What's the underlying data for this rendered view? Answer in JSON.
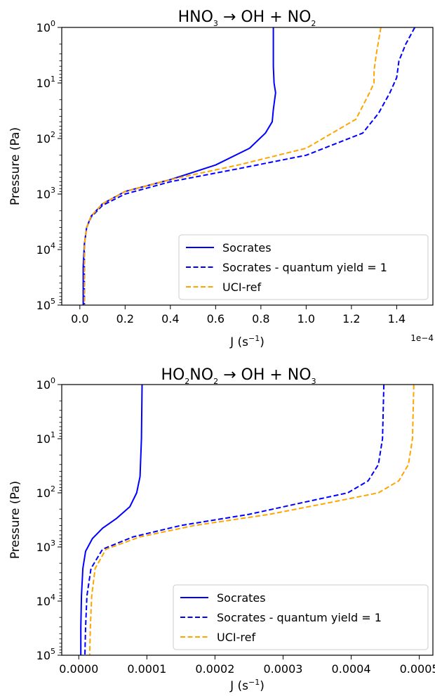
{
  "chart_data": [
    {
      "type": "line",
      "title": {
        "pre": "HNO",
        "s1": "3",
        "mid": " → OH + NO",
        "s2": "2",
        "post": ""
      },
      "xlabel": {
        "base": "J (s",
        "sup": "−1",
        "close": ")"
      },
      "ylabel": "Pressure (Pa)",
      "x_scale_note": "1e−4",
      "y_scale": "log",
      "y_inverted": true,
      "xlim": [
        -0.08,
        1.56
      ],
      "ylim": [
        1,
        100000
      ],
      "x_ticks": [
        0.0,
        0.2,
        0.4,
        0.6,
        0.8,
        1.0,
        1.2,
        1.4
      ],
      "x_tick_labels": [
        "0.0",
        "0.2",
        "0.4",
        "0.6",
        "0.8",
        "1.0",
        "1.2",
        "1.4"
      ],
      "y_ticks": [
        {
          "base": "10",
          "exp": "0",
          "value": 1
        },
        {
          "base": "10",
          "exp": "1",
          "value": 10
        },
        {
          "base": "10",
          "exp": "2",
          "value": 100
        },
        {
          "base": "10",
          "exp": "3",
          "value": 1000
        },
        {
          "base": "10",
          "exp": "4",
          "value": 10000
        },
        {
          "base": "10",
          "exp": "5",
          "value": 100000
        }
      ],
      "legend": {
        "location": "lower right"
      },
      "series": [
        {
          "name": "Socrates",
          "color": "#0000ff",
          "style": "solid",
          "x": [
            0.855,
            0.855,
            0.858,
            0.865,
            0.855,
            0.85,
            0.82,
            0.75,
            0.6,
            0.4,
            0.2,
            0.1,
            0.05,
            0.03,
            0.02,
            0.015,
            0.015,
            0.015
          ],
          "y": [
            1,
            5,
            10,
            15,
            30,
            50,
            80,
            150,
            300,
            550,
            900,
            1500,
            2500,
            4000,
            8000,
            20000,
            50000,
            100000
          ]
        },
        {
          "name": "Socrates - quantum yield = 1",
          "color": "#0000ff",
          "style": "dashed",
          "x": [
            1.48,
            1.44,
            1.41,
            1.4,
            1.37,
            1.32,
            1.25,
            1.0,
            0.7,
            0.4,
            0.2,
            0.1,
            0.05,
            0.03,
            0.02,
            0.02,
            0.02
          ],
          "y": [
            1,
            2,
            4,
            8,
            15,
            35,
            80,
            200,
            350,
            600,
            1000,
            1600,
            2600,
            4000,
            8000,
            30000,
            100000
          ]
        },
        {
          "name": "UCI-ref",
          "color": "#ffa500",
          "style": "dashed",
          "x": [
            1.33,
            1.31,
            1.3,
            1.3,
            1.28,
            1.22,
            1.0,
            0.7,
            0.4,
            0.2,
            0.1,
            0.05,
            0.03,
            0.02,
            0.02,
            0.02
          ],
          "y": [
            1,
            3,
            6,
            10,
            15,
            45,
            150,
            300,
            550,
            900,
            1500,
            2500,
            4000,
            8000,
            30000,
            100000
          ]
        }
      ]
    },
    {
      "type": "line",
      "title": {
        "pre": "HO",
        "s1": "2",
        "mid": "NO",
        "s2": "2",
        "post": " → OH + NO",
        "s3": "3"
      },
      "xlabel": {
        "base": "J (s",
        "sup": "−1",
        "close": ")"
      },
      "ylabel": "Pressure (Pa)",
      "x_scale_note": "",
      "y_scale": "log",
      "y_inverted": true,
      "xlim": [
        -2.5e-05,
        0.00052
      ],
      "ylim": [
        1,
        100000
      ],
      "x_ticks": [
        0.0,
        0.0001,
        0.0002,
        0.0003,
        0.0004,
        0.0005
      ],
      "x_tick_labels": [
        "0.0000",
        "0.0001",
        "0.0002",
        "0.0003",
        "0.0004",
        "0.0005"
      ],
      "y_ticks": [
        {
          "base": "10",
          "exp": "0",
          "value": 1
        },
        {
          "base": "10",
          "exp": "1",
          "value": 10
        },
        {
          "base": "10",
          "exp": "2",
          "value": 100
        },
        {
          "base": "10",
          "exp": "3",
          "value": 1000
        },
        {
          "base": "10",
          "exp": "4",
          "value": 10000
        },
        {
          "base": "10",
          "exp": "5",
          "value": 100000
        }
      ],
      "legend": {
        "location": "lower right"
      },
      "series": [
        {
          "name": "Socrates",
          "color": "#0000ff",
          "style": "solid",
          "x": [
            9.3e-05,
            9.2e-05,
            9e-05,
            8.5e-05,
            7.5e-05,
            5.5e-05,
            3.5e-05,
            2e-05,
            1e-05,
            6e-06,
            4e-06,
            3e-06,
            3e-06
          ],
          "y": [
            1,
            10,
            50,
            100,
            180,
            300,
            450,
            700,
            1200,
            2500,
            8000,
            30000,
            100000
          ]
        },
        {
          "name": "Socrates - quantum yield = 1",
          "color": "#0000ff",
          "style": "dashed",
          "x": [
            0.000448,
            0.000446,
            0.00044,
            0.000425,
            0.000395,
            0.00033,
            0.00025,
            0.00015,
            8e-05,
            3.5e-05,
            1.8e-05,
            1.2e-05,
            1e-05,
            9e-06
          ],
          "y": [
            1,
            10,
            30,
            60,
            100,
            150,
            250,
            400,
            650,
            1100,
            2500,
            8000,
            30000,
            100000
          ]
        },
        {
          "name": "UCI-ref",
          "color": "#ffa500",
          "style": "dashed",
          "x": [
            0.000492,
            0.00049,
            0.000484,
            0.00047,
            0.00044,
            0.00037,
            0.00028,
            0.00017,
            9e-05,
            4e-05,
            2.4e-05,
            1.9e-05,
            1.7e-05,
            1.6e-05
          ],
          "y": [
            1,
            10,
            30,
            60,
            100,
            150,
            250,
            400,
            650,
            1100,
            2500,
            8000,
            30000,
            100000
          ]
        }
      ]
    }
  ]
}
